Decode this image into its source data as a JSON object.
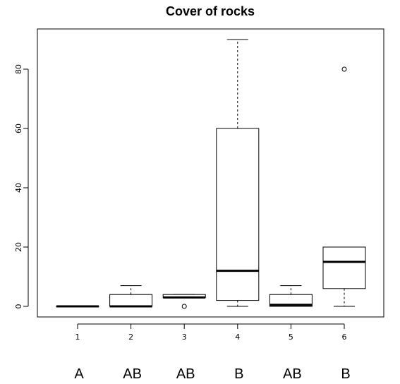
{
  "chart_data": {
    "type": "boxplot",
    "title": "Cover of rocks",
    "xlabel": "",
    "ylabel": "",
    "categories": [
      "1",
      "2",
      "3",
      "4",
      "5",
      "6"
    ],
    "ylim": [
      -3,
      92
    ],
    "yticks": [
      0,
      20,
      40,
      60,
      80
    ],
    "boxes": [
      {
        "category": "1",
        "whisker_low": 0,
        "q1": 0,
        "median": 0,
        "q3": 0,
        "whisker_high": 0,
        "outliers": []
      },
      {
        "category": "2",
        "whisker_low": 0,
        "q1": 0,
        "median": 0,
        "q3": 4,
        "whisker_high": 7,
        "outliers": []
      },
      {
        "category": "3",
        "whisker_low": 3,
        "q1": 3,
        "median": 3,
        "q3": 4,
        "whisker_high": 4,
        "outliers": [
          0
        ]
      },
      {
        "category": "4",
        "whisker_low": 0,
        "q1": 2,
        "median": 12,
        "q3": 60,
        "whisker_high": 90,
        "outliers": []
      },
      {
        "category": "5",
        "whisker_low": 0,
        "q1": 0,
        "median": 0.5,
        "q3": 4,
        "whisker_high": 7,
        "outliers": []
      },
      {
        "category": "6",
        "whisker_low": 0,
        "q1": 6,
        "median": 15,
        "q3": 20,
        "whisker_high": 20,
        "outliers": [
          80
        ]
      }
    ],
    "group_letters": [
      "A",
      "AB",
      "AB",
      "B",
      "AB",
      "B"
    ],
    "grid": false,
    "legend": "none"
  }
}
